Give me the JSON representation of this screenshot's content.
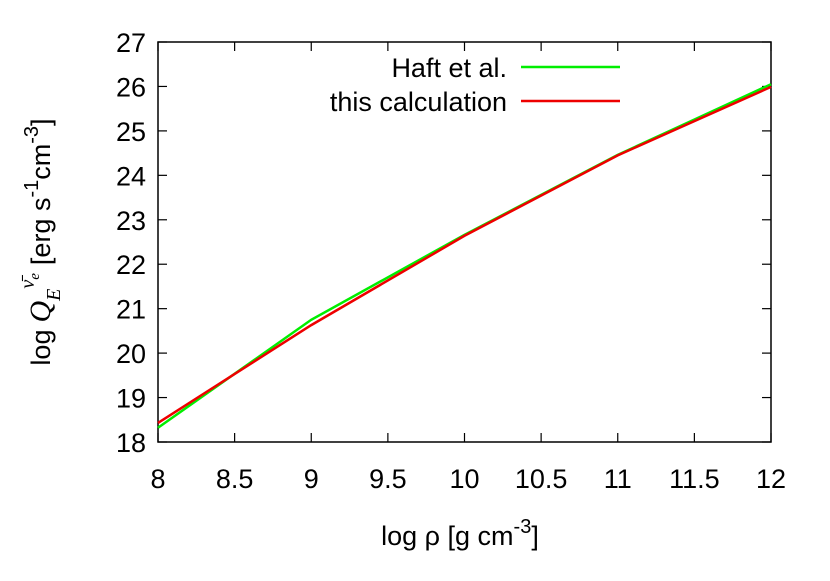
{
  "chart_data": {
    "type": "line",
    "xlabel": {
      "text": "log ρ [g cm",
      "exp": "-3",
      "close": "]"
    },
    "ylabel": {
      "prefix": "log",
      "symbol": "Q",
      "sub": "E",
      "sup": "ν̄",
      "supsub": "e",
      "unit": "[erg s",
      "exp1": "-1",
      "unit2": "cm",
      "exp2": "-3",
      "close": "]"
    },
    "x": [
      8,
      9,
      10,
      11,
      12
    ],
    "series": [
      {
        "name": "Haft et al.",
        "color": "#00ee00",
        "values": [
          18.32,
          20.75,
          22.66,
          24.46,
          26.05
        ]
      },
      {
        "name": "this calculation",
        "color": "#ee0000",
        "values": [
          18.43,
          20.63,
          22.64,
          24.45,
          25.99
        ]
      }
    ],
    "xlim": [
      8,
      12
    ],
    "xticks": [
      8,
      8.5,
      9,
      9.5,
      10,
      10.5,
      11,
      11.5,
      12
    ],
    "ylim": [
      18,
      27
    ],
    "yticks": [
      18,
      19,
      20,
      21,
      22,
      23,
      24,
      25,
      26,
      27
    ],
    "grid": false,
    "legend": "top-right"
  }
}
